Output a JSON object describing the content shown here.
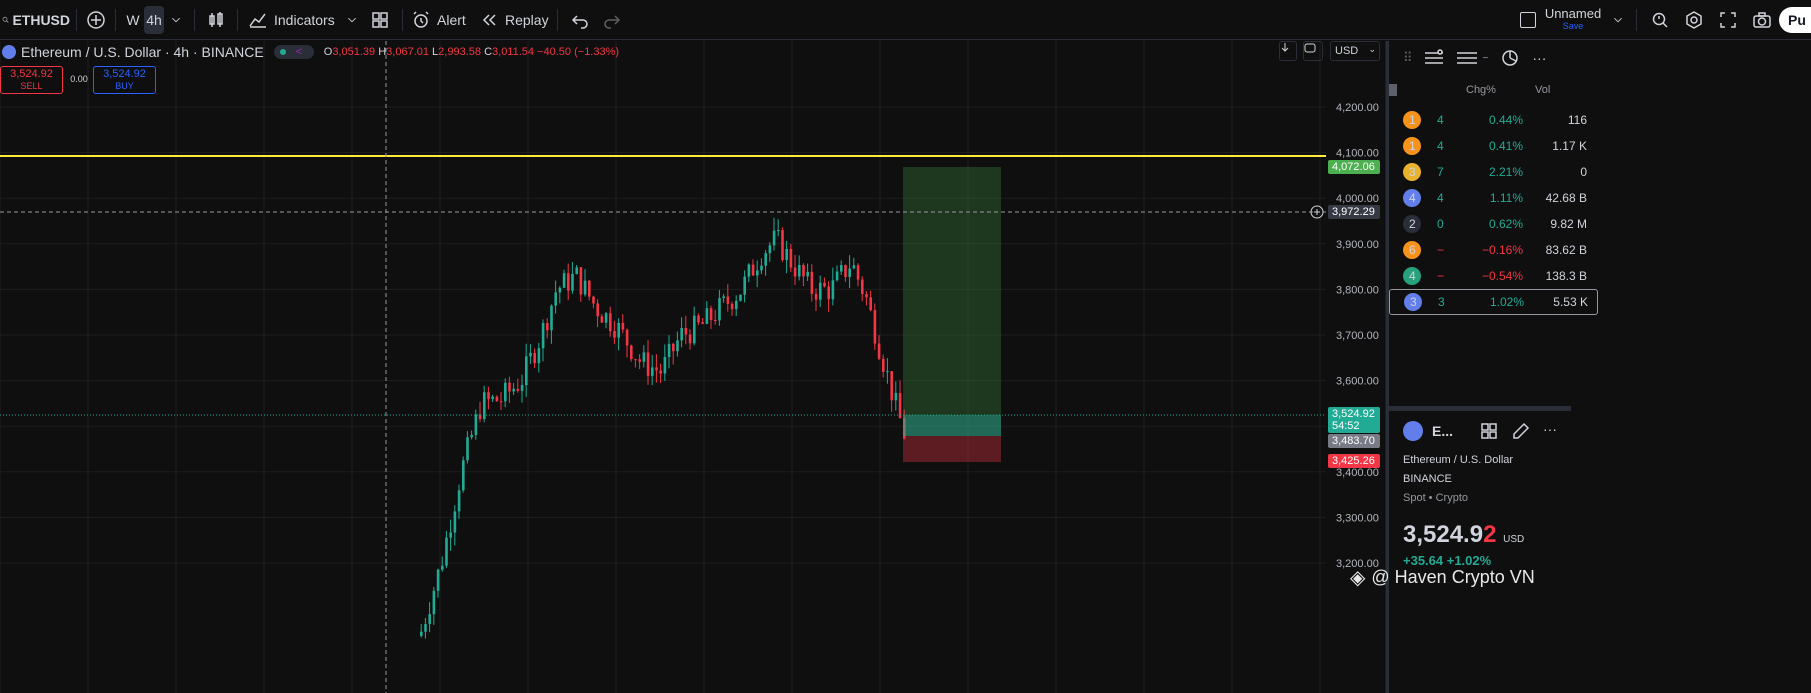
{
  "toolbar": {
    "symbol": "ETHUSD",
    "timeframe_w": "W",
    "timeframe_active": "4h",
    "indicators_label": "Indicators",
    "alert_label": "Alert",
    "replay_label": "Replay",
    "layout_name": "Unnamed",
    "layout_status": "Save",
    "publish_label": "Pu"
  },
  "legend": {
    "title": "Ethereum / U.S. Dollar · 4h · BINANCE",
    "o_label": "O",
    "o_val": "3,051.39",
    "h_label": "H",
    "h_val": "3,067.01",
    "l_label": "L",
    "l_val": "2,993.58",
    "c_label": "C",
    "c_val": "3,011.54",
    "change": "−40.50 (−1.33%)"
  },
  "trade": {
    "sell_price": "3,524.92",
    "sell_label": "SELL",
    "spread": "0.00",
    "buy_price": "3,524.92",
    "buy_label": "BUY"
  },
  "chart_controls": {
    "currency": "USD"
  },
  "price_axis": {
    "ticks": [
      "4,200.00",
      "4,100.00",
      "4,000.00",
      "3,900.00",
      "3,800.00",
      "3,700.00",
      "3,600.00",
      "3,400.00",
      "3,300.00",
      "3,200.00"
    ],
    "target_label": "4,072.06",
    "crosshair_label": "3,972.29",
    "last_price_label": "3,524.92",
    "countdown_label": "54:52",
    "entry_label": "3,483.70",
    "stop_label": "3,425.26"
  },
  "watchlist": {
    "col_chg": "Chg%",
    "col_vol": "Vol",
    "rows": [
      {
        "sym": "1",
        "last": "4",
        "chg": "0.44%",
        "vol": "116",
        "dir": "up",
        "color": "#f7931a"
      },
      {
        "sym": "1",
        "last": "4",
        "chg": "0.41%",
        "vol": "1.17 K",
        "dir": "up",
        "color": "#f7931a"
      },
      {
        "sym": "3",
        "last": "7",
        "chg": "2.21%",
        "vol": "0",
        "dir": "up",
        "color": "#e8b22c"
      },
      {
        "sym": "4",
        "last": "4",
        "chg": "1.11%",
        "vol": "42.68 B",
        "dir": "up",
        "color": "#627eea"
      },
      {
        "sym": "2",
        "last": "0",
        "chg": "0.62%",
        "vol": "9.82 M",
        "dir": "up",
        "color": "#2a2e39"
      },
      {
        "sym": "6",
        "last": "−",
        "chg": "−0.16%",
        "vol": "83.62 B",
        "dir": "down",
        "color": "#f7931a"
      },
      {
        "sym": "4",
        "last": "−",
        "chg": "−0.54%",
        "vol": "138.3 B",
        "dir": "down",
        "color": "#26a17b"
      },
      {
        "sym": "3",
        "last": "3",
        "chg": "1.02%",
        "vol": "5.53 K",
        "dir": "up",
        "color": "#627eea"
      }
    ]
  },
  "details": {
    "short_name": "E...",
    "full_name": "Ethereum / U.S. Dollar",
    "exchange": "BINANCE",
    "category": "Spot • Crypto",
    "price_main": "3,524.9",
    "price_last_digit": "2",
    "currency": "USD",
    "change": "+35.64 +1.02%"
  },
  "watermark": "@ Haven Crypto VN"
}
